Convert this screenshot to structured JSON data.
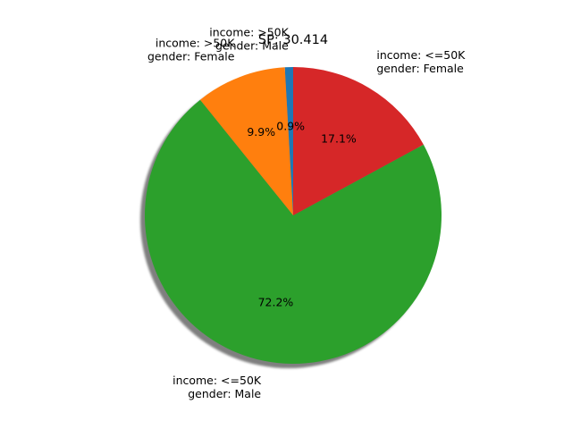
{
  "chart_data": {
    "type": "pie",
    "title": "SP: 30.414",
    "shadow": true,
    "slices": [
      {
        "label_lines": [
          "income: >50K",
          "gender: Male"
        ],
        "value": 0.9,
        "pct_label": "0.9%",
        "color": "#1f77b4"
      },
      {
        "label_lines": [
          "income: >50K",
          "gender: Female"
        ],
        "value": 9.9,
        "pct_label": "9.9%",
        "color": "#ff7f0e"
      },
      {
        "label_lines": [
          "income: <=50K",
          "gender: Male"
        ],
        "value": 72.2,
        "pct_label": "72.2%",
        "color": "#2ca02c"
      },
      {
        "label_lines": [
          "income: <=50K",
          "gender: Female"
        ],
        "value": 17.1,
        "pct_label": "17.1%",
        "color": "#d62728"
      }
    ]
  }
}
